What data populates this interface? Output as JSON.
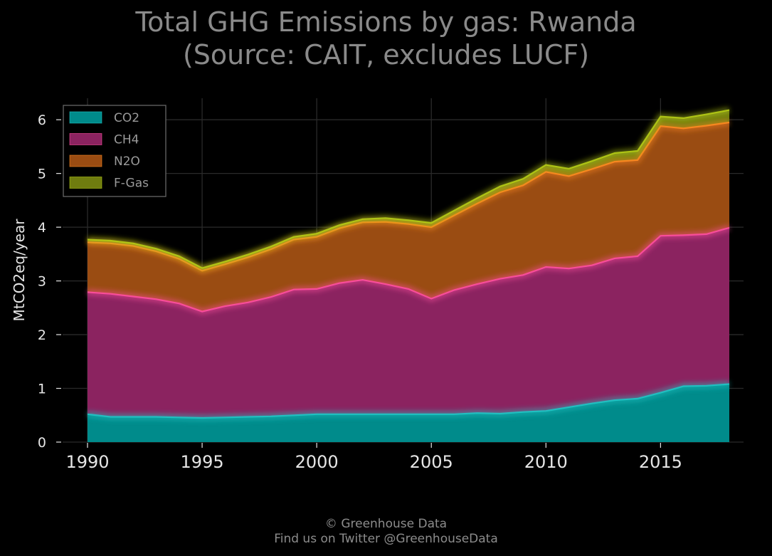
{
  "title_line1": "Total GHG Emissions by gas: Rwanda",
  "title_line2": "(Source: CAIT, excludes LUCF)",
  "footer_line1": "© Greenhouse Data",
  "footer_line2": "Find us on Twitter @GreenhouseData",
  "colors": {
    "background": "#000000",
    "grid": "#2a2a2a",
    "CO2": "#008b8b",
    "CH4": "#8b2360",
    "N2O": "#9a4c12",
    "F-Gas": "#6f7c0f",
    "CO2_line": "#20c5c5",
    "CH4_line": "#ff4fa0",
    "N2O_line": "#ff8a20",
    "F-Gas_line": "#b5cc16"
  },
  "chart_data": {
    "type": "area",
    "stacked": true,
    "ylabel": "MtCO2eq/year",
    "xlabel": "",
    "xlim": [
      1990,
      2018
    ],
    "ylim": [
      0,
      6.4
    ],
    "xticks": [
      1990,
      1995,
      2000,
      2005,
      2010,
      2015
    ],
    "yticks": [
      0,
      1,
      2,
      3,
      4,
      5,
      6
    ],
    "grid": true,
    "legend_position": "top-left",
    "x": [
      1990,
      1991,
      1992,
      1993,
      1994,
      1995,
      1996,
      1997,
      1998,
      1999,
      2000,
      2001,
      2002,
      2003,
      2004,
      2005,
      2006,
      2007,
      2008,
      2009,
      2010,
      2011,
      2012,
      2013,
      2014,
      2015,
      2016,
      2017,
      2018
    ],
    "series": [
      {
        "name": "CO2",
        "values": [
          0.52,
          0.47,
          0.47,
          0.47,
          0.46,
          0.45,
          0.46,
          0.47,
          0.48,
          0.5,
          0.52,
          0.52,
          0.52,
          0.52,
          0.52,
          0.52,
          0.52,
          0.54,
          0.53,
          0.56,
          0.58,
          0.65,
          0.72,
          0.78,
          0.81,
          0.92,
          1.04,
          1.05,
          1.08
        ]
      },
      {
        "name": "CH4",
        "values": [
          2.27,
          2.29,
          2.24,
          2.19,
          2.12,
          1.98,
          2.07,
          2.13,
          2.22,
          2.34,
          2.33,
          2.44,
          2.5,
          2.42,
          2.33,
          2.15,
          2.31,
          2.4,
          2.51,
          2.55,
          2.68,
          2.58,
          2.57,
          2.64,
          2.65,
          2.92,
          2.81,
          2.82,
          2.91
        ]
      },
      {
        "name": "N2O",
        "values": [
          0.93,
          0.94,
          0.94,
          0.89,
          0.83,
          0.76,
          0.78,
          0.84,
          0.89,
          0.93,
          0.97,
          1.02,
          1.07,
          1.16,
          1.21,
          1.33,
          1.39,
          1.5,
          1.61,
          1.67,
          1.77,
          1.72,
          1.79,
          1.8,
          1.79,
          2.04,
          1.99,
          2.02,
          1.96
        ]
      },
      {
        "name": "F-Gas",
        "values": [
          0.05,
          0.05,
          0.05,
          0.05,
          0.05,
          0.05,
          0.05,
          0.05,
          0.05,
          0.05,
          0.06,
          0.06,
          0.06,
          0.07,
          0.07,
          0.08,
          0.09,
          0.1,
          0.11,
          0.12,
          0.13,
          0.14,
          0.15,
          0.16,
          0.17,
          0.18,
          0.19,
          0.21,
          0.23
        ]
      }
    ]
  }
}
